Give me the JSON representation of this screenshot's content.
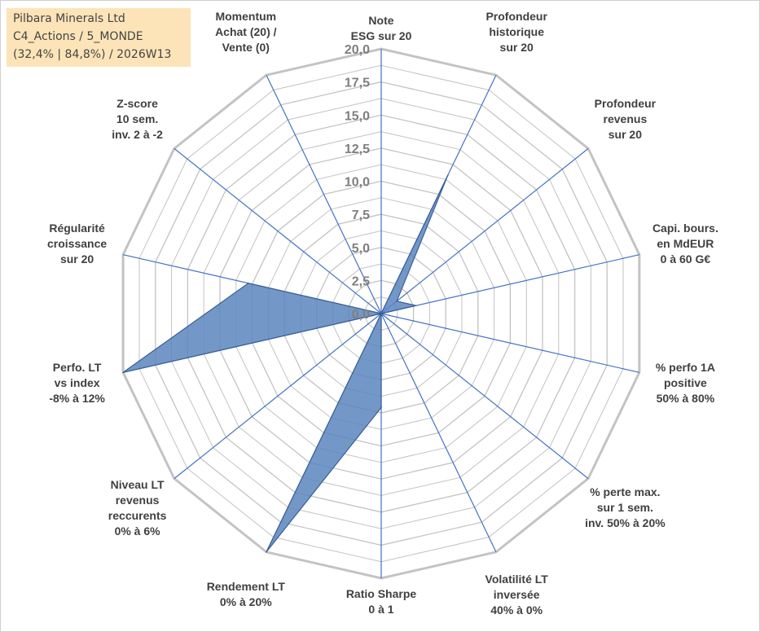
{
  "info": {
    "company": "Pilbara Minerals Ltd",
    "category": "C4_Actions / 5_MONDE",
    "stats": "(32,4% | 84,8%) / 2026W13"
  },
  "colors": {
    "grid": "#c3c3c3",
    "axis": "#4472c4",
    "fill": "#5b86be",
    "stroke": "#3a5f96",
    "text": "#404040",
    "tick": "#7f7f7f",
    "info_bg": "#fce4b8"
  },
  "chart_data": {
    "type": "radar",
    "title": "",
    "rlim": [
      0,
      20
    ],
    "ticks": [
      "0,0",
      "2,5",
      "5,0",
      "7,5",
      "10,0",
      "12,5",
      "15,0",
      "17,5",
      "20,0"
    ],
    "tick_values": [
      0,
      2.5,
      5,
      7.5,
      10,
      12.5,
      15,
      17.5,
      20
    ],
    "minor_rings": 16,
    "categories": [
      [
        "Note",
        "ESG sur 20"
      ],
      [
        "Profondeur",
        "historique",
        "sur 20"
      ],
      [
        "Profondeur",
        "revenus",
        "sur 20"
      ],
      [
        "Capi. bours.",
        "en MdEUR",
        "0 à 60 G€"
      ],
      [
        "% perfo 1A",
        "positive",
        "50% à 80%"
      ],
      [
        "% perte max.",
        "sur 1 sem.",
        "inv. 50% à 20%"
      ],
      [
        "Volatilité LT",
        "inversée",
        "40% à 0%"
      ],
      [
        "Ratio Sharpe",
        "0 à 1"
      ],
      [
        "Rendement LT",
        "0% à 20%"
      ],
      [
        "Niveau LT",
        "revenus",
        "reccurents",
        "0% à 6%"
      ],
      [
        "Perfo. LT",
        "vs index",
        "-8% à 12%"
      ],
      [
        "Régularité",
        "croissance",
        "sur 20"
      ],
      [
        "Z-score",
        "10 sem.",
        "inv. 2 à -2"
      ],
      [
        "Momentum",
        "Achat (20) /",
        "Vente (0)"
      ]
    ],
    "series": [
      {
        "name": "Pilbara Minerals Ltd",
        "values": [
          0,
          11.6,
          1.5,
          2.7,
          0,
          0,
          0,
          7.1,
          20,
          0,
          20,
          10.3,
          0,
          0
        ]
      }
    ]
  }
}
